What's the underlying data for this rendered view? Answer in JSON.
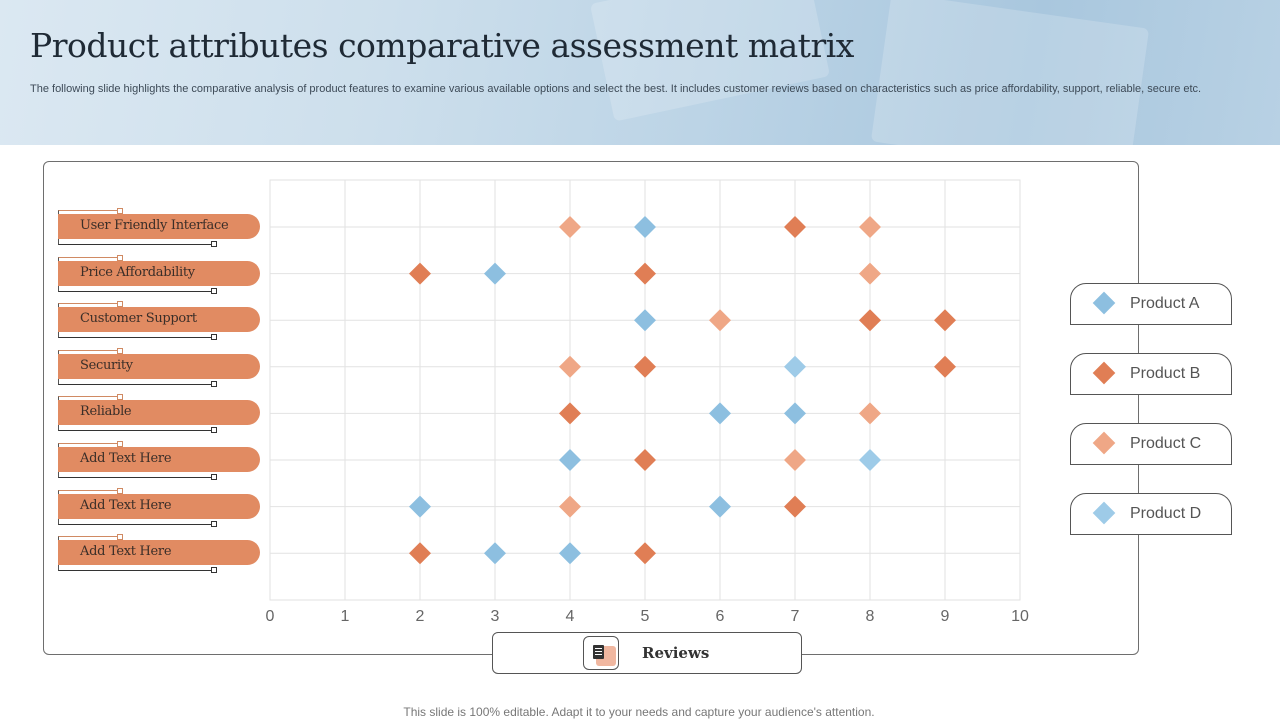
{
  "header": {
    "title": "Product attributes comparative assessment matrix",
    "subtitle": "The following slide highlights the comparative analysis of product features to examine various available options and select the best. It includes customer reviews based on characteristics such as price affordability, support, reliable, secure etc."
  },
  "reviews_label": "Reviews",
  "footer_text": "This slide is 100% editable. Adapt it to your needs and capture your audience's attention.",
  "chart_data": {
    "type": "scatter",
    "title": "",
    "xlabel": "Reviews",
    "ylabel": "",
    "xlim": [
      0,
      10
    ],
    "x_ticks": [
      0,
      1,
      2,
      3,
      4,
      5,
      6,
      7,
      8,
      9,
      10
    ],
    "grid": true,
    "legend_position": "right",
    "marker": "diamond",
    "categories": [
      "User Friendly Interface",
      "Price Affordability",
      "Customer Support",
      "Security",
      "Reliable",
      "Add Text Here",
      "Add Text Here",
      "Add Text Here"
    ],
    "series": [
      {
        "name": "Product A",
        "color": "#8dbfe0",
        "points": [
          [
            5,
            0
          ],
          [
            3,
            1
          ],
          [
            5,
            2
          ],
          [
            6,
            4
          ],
          [
            7,
            4
          ],
          [
            4,
            5
          ],
          [
            2,
            6
          ],
          [
            6,
            6
          ],
          [
            3,
            7
          ],
          [
            4,
            7
          ]
        ]
      },
      {
        "name": "Product B",
        "color": "#e07e55",
        "points": [
          [
            7,
            0
          ],
          [
            5,
            1
          ],
          [
            2,
            1
          ],
          [
            9,
            2
          ],
          [
            8,
            2
          ],
          [
            5,
            3
          ],
          [
            9,
            3
          ],
          [
            4,
            4
          ],
          [
            5,
            5
          ],
          [
            7,
            6
          ],
          [
            2,
            7
          ],
          [
            5,
            7
          ]
        ]
      },
      {
        "name": "Product C",
        "color": "#efa786",
        "points": [
          [
            4,
            0
          ],
          [
            8,
            0
          ],
          [
            8,
            1
          ],
          [
            6,
            2
          ],
          [
            4,
            3
          ],
          [
            8,
            4
          ],
          [
            7,
            5
          ],
          [
            4,
            6
          ]
        ]
      },
      {
        "name": "Product D",
        "color": "#9ecbe8",
        "points": [
          [
            7,
            3
          ],
          [
            8,
            5
          ]
        ]
      }
    ]
  }
}
